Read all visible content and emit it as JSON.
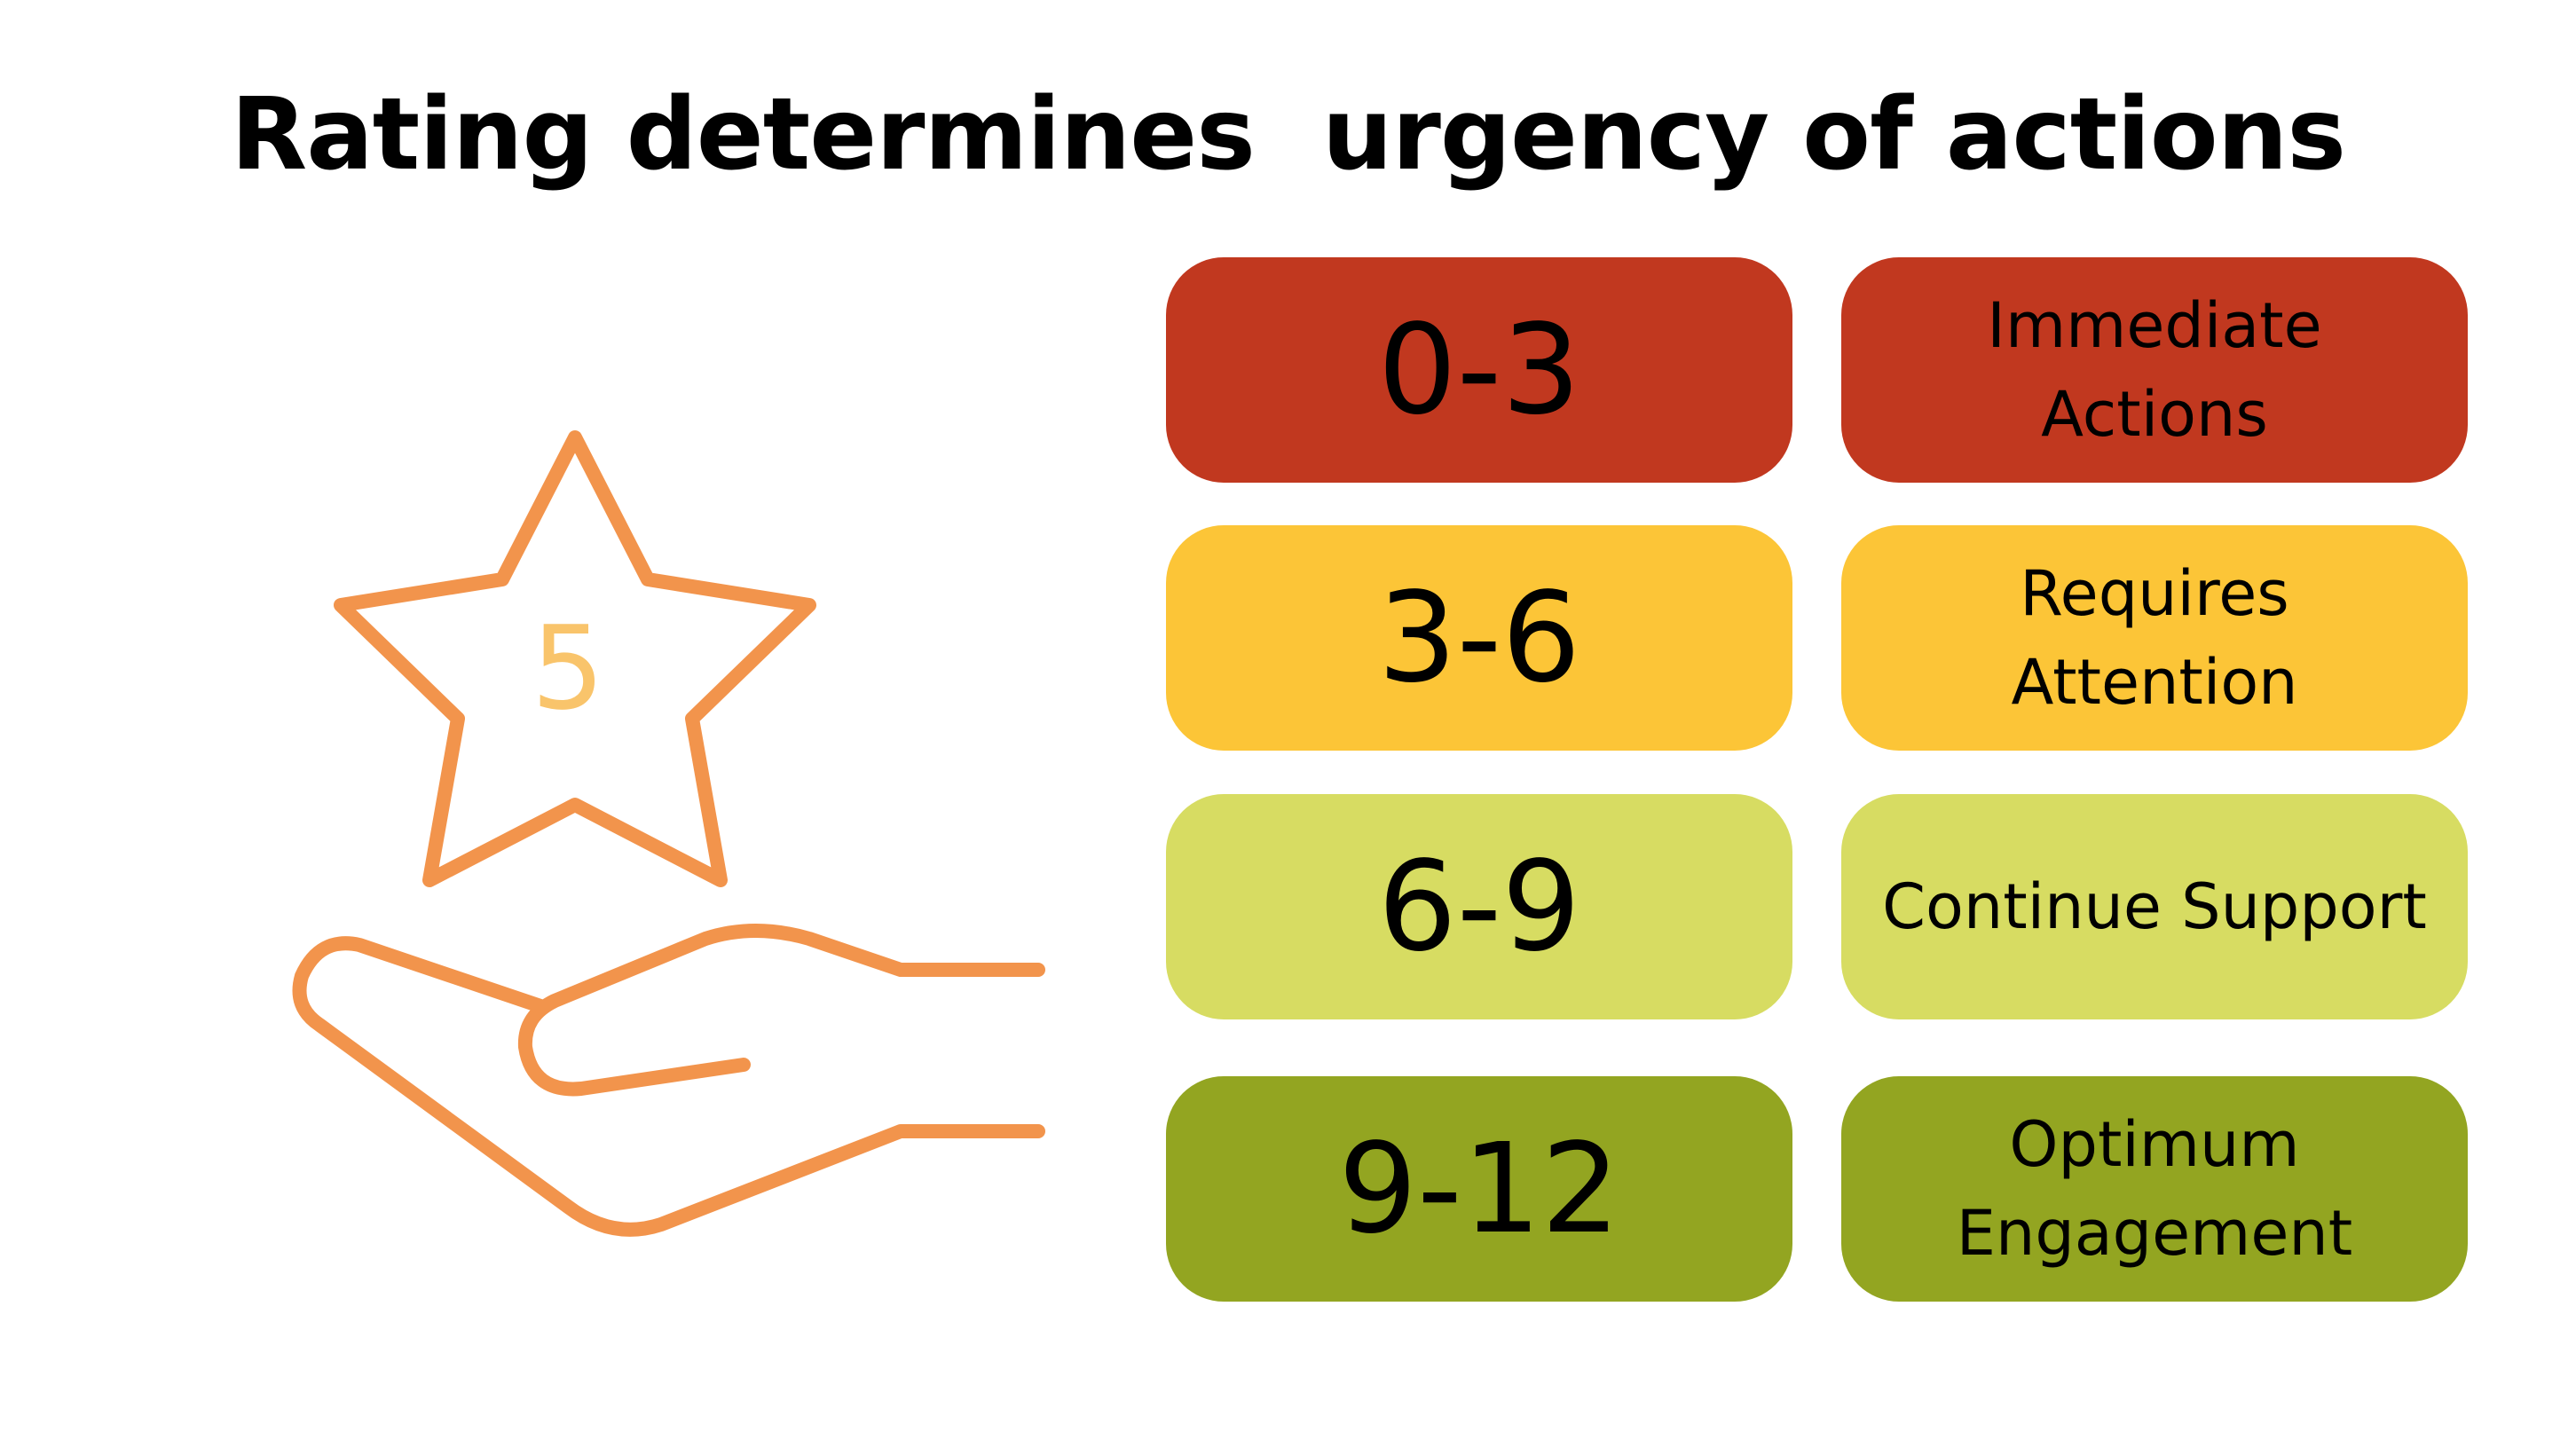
{
  "title": "Rating determines  urgency of actions",
  "illustration": {
    "star_number": "5",
    "star_color": "#f2944c",
    "hand_color": "#f2944c",
    "number_color": "#f9c46b",
    "icons": [
      "star-icon",
      "hand-icon"
    ]
  },
  "rows": [
    {
      "range": "0-3",
      "action": "Immediate\nActions",
      "color": "#c1381f"
    },
    {
      "range": "3-6",
      "action": "Requires\nAttention",
      "color": "#fcc537"
    },
    {
      "range": "6-9",
      "action": "Continue Support",
      "color": "#d7dc62"
    },
    {
      "range": "9-12",
      "action": "Optimum\nEngagement",
      "color": "#93a521"
    }
  ]
}
